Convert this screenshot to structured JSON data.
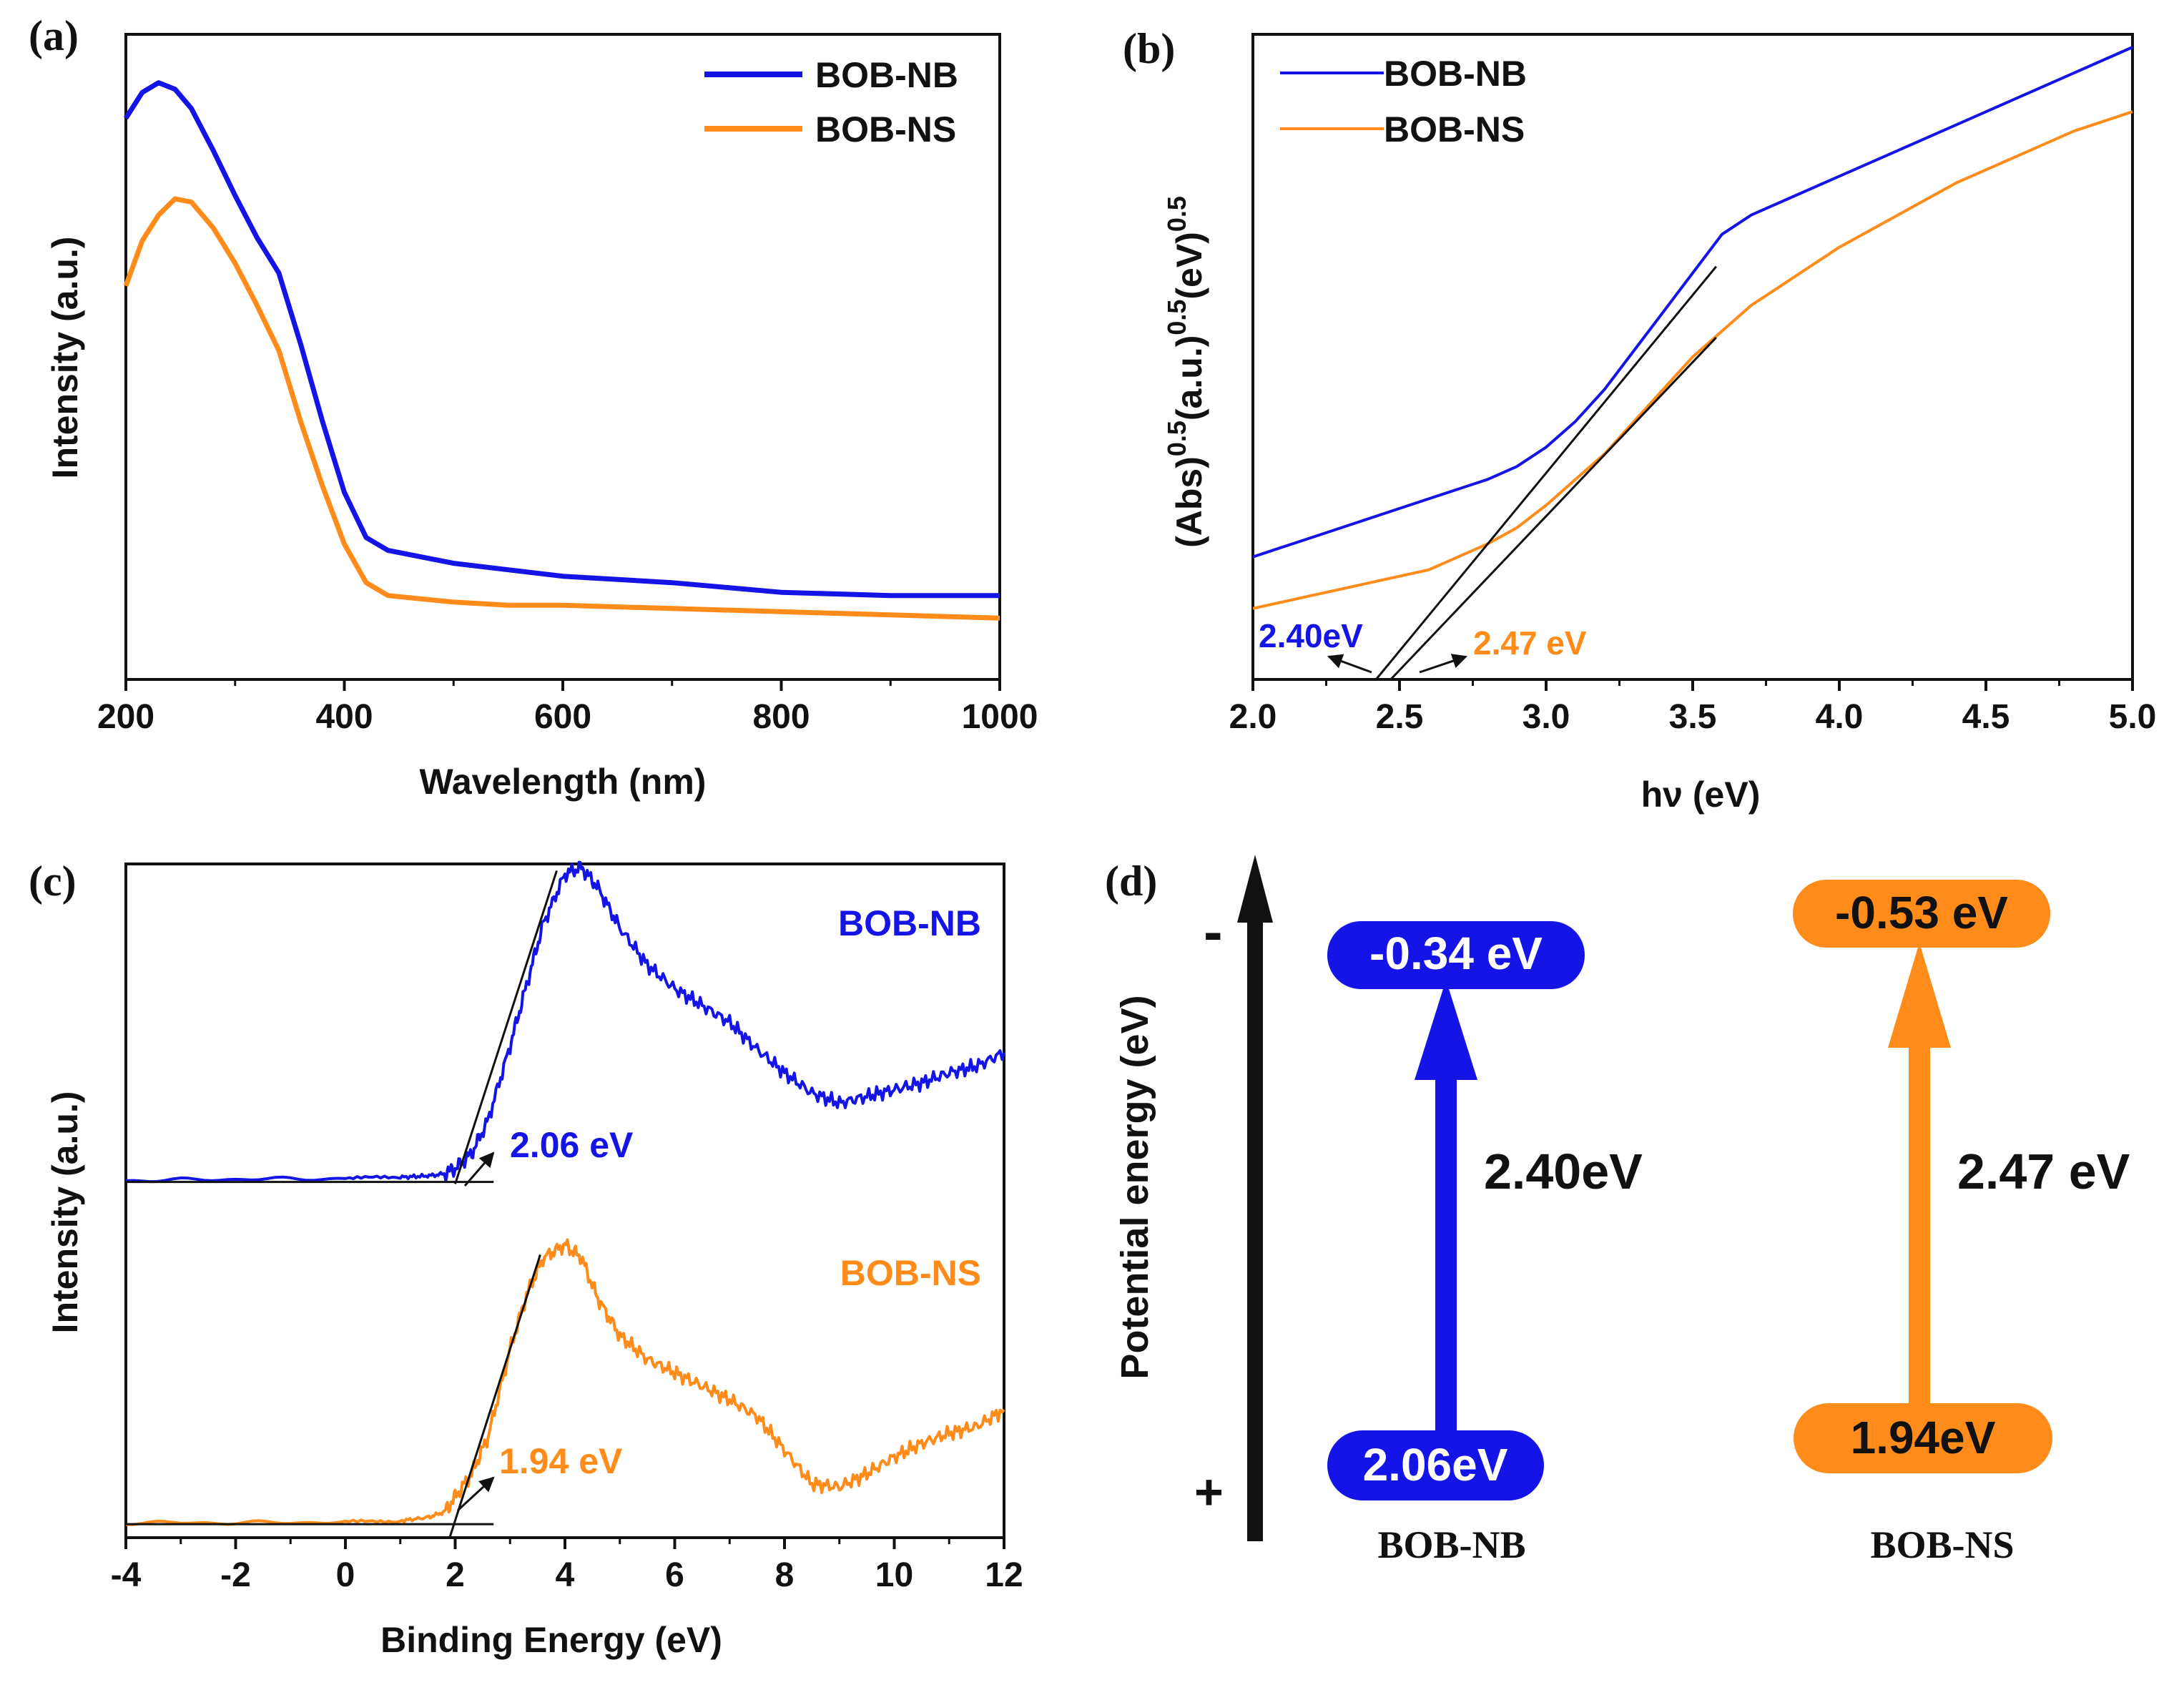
{
  "colors": {
    "nb": "#1414e6",
    "ns": "#ff8c1a",
    "axis": "#111111",
    "text": "#111111"
  },
  "chart_data": [
    {
      "panel": "(a)",
      "type": "line",
      "xlabel": "Wavelength (nm)",
      "ylabel": "Intensity (a.u.)",
      "xlim": [
        200,
        1000
      ],
      "ylim": [
        0,
        1
      ],
      "xticks": [
        200,
        400,
        600,
        800,
        1000
      ],
      "xtick_labels": [
        "200",
        "400",
        "600",
        "800",
        "1000"
      ],
      "legend_position": "top-right",
      "series": [
        {
          "name": "BOB-NB",
          "color": "#1414e6",
          "x": [
            200,
            215,
            230,
            245,
            260,
            280,
            300,
            320,
            340,
            360,
            380,
            400,
            420,
            440,
            470,
            500,
            550,
            600,
            700,
            800,
            900,
            1000
          ],
          "y": [
            0.87,
            0.91,
            0.925,
            0.915,
            0.885,
            0.82,
            0.75,
            0.685,
            0.63,
            0.52,
            0.4,
            0.29,
            0.22,
            0.2,
            0.19,
            0.18,
            0.17,
            0.16,
            0.15,
            0.135,
            0.13,
            0.13
          ]
        },
        {
          "name": "BOB-NS",
          "color": "#ff8c1a",
          "x": [
            200,
            215,
            230,
            245,
            260,
            280,
            300,
            320,
            340,
            360,
            380,
            400,
            420,
            440,
            470,
            500,
            550,
            600,
            700,
            800,
            900,
            1000
          ],
          "y": [
            0.61,
            0.68,
            0.72,
            0.745,
            0.74,
            0.7,
            0.645,
            0.58,
            0.51,
            0.4,
            0.3,
            0.21,
            0.15,
            0.13,
            0.125,
            0.12,
            0.115,
            0.115,
            0.11,
            0.105,
            0.1,
            0.095
          ]
        }
      ]
    },
    {
      "panel": "(b)",
      "type": "line",
      "xlabel": "hν (eV)",
      "ylabel_parts": {
        "base1": "(Abs)",
        "sup1": "0.5",
        "sub1": "(a.u.)",
        "sup2": "0.5",
        "sub2": "(eV)",
        "sup3": "0.5"
      },
      "xlim": [
        2.0,
        5.0
      ],
      "ylim": [
        0,
        1
      ],
      "xticks": [
        2.0,
        2.5,
        3.0,
        3.5,
        4.0,
        4.5,
        5.0
      ],
      "xtick_labels": [
        "2.0",
        "2.5",
        "3.0",
        "3.5",
        "4.0",
        "4.5",
        "5.0"
      ],
      "legend_position": "top-left",
      "series": [
        {
          "name": "BOB-NB",
          "color": "#1414e6",
          "x": [
            2.0,
            2.2,
            2.4,
            2.6,
            2.8,
            2.9,
            3.0,
            3.1,
            3.2,
            3.3,
            3.4,
            3.5,
            3.6,
            3.7,
            3.8,
            4.0,
            4.2,
            4.4,
            4.6,
            4.8,
            5.0
          ],
          "y": [
            0.19,
            0.22,
            0.25,
            0.28,
            0.31,
            0.33,
            0.36,
            0.4,
            0.45,
            0.51,
            0.57,
            0.63,
            0.69,
            0.72,
            0.74,
            0.78,
            0.82,
            0.86,
            0.9,
            0.94,
            0.98
          ]
        },
        {
          "name": "BOB-NS",
          "color": "#ff8c1a",
          "x": [
            2.0,
            2.2,
            2.4,
            2.6,
            2.7,
            2.8,
            2.9,
            3.0,
            3.1,
            3.2,
            3.3,
            3.4,
            3.5,
            3.6,
            3.7,
            3.8,
            4.0,
            4.2,
            4.4,
            4.6,
            4.8,
            5.0
          ],
          "y": [
            0.11,
            0.13,
            0.15,
            0.17,
            0.19,
            0.21,
            0.235,
            0.27,
            0.31,
            0.35,
            0.4,
            0.45,
            0.5,
            0.54,
            0.58,
            0.61,
            0.67,
            0.72,
            0.77,
            0.81,
            0.85,
            0.88
          ]
        }
      ],
      "tangents": [
        {
          "color": "#111111",
          "x": [
            2.42,
            3.58
          ],
          "y": [
            0.0,
            0.64
          ]
        },
        {
          "color": "#111111",
          "x": [
            2.47,
            3.58
          ],
          "y": [
            0.0,
            0.53
          ]
        }
      ],
      "annotations": [
        {
          "text": "2.40eV",
          "color": "#1414e6",
          "x": 2.4
        },
        {
          "text": "2.47 eV",
          "color": "#ff8c1a",
          "x": 2.47
        }
      ]
    },
    {
      "panel": "(c)",
      "type": "line",
      "xlabel": "Binding Energy (eV)",
      "ylabel": "Intensity (a.u.)",
      "xlim": [
        -4,
        12
      ],
      "ylim": [
        0,
        1
      ],
      "xticks": [
        -4,
        -2,
        0,
        2,
        4,
        6,
        8,
        10,
        12
      ],
      "xtick_labels": [
        "-4",
        "-2",
        "0",
        "2",
        "4",
        "6",
        "8",
        "10",
        "12"
      ],
      "series": [
        {
          "name": "BOB-NB",
          "color": "#1414e6",
          "x": [
            -4,
            -2,
            0,
            1.0,
            1.5,
            1.8,
            2.0,
            2.3,
            2.6,
            3.0,
            3.3,
            3.6,
            4.0,
            4.3,
            4.6,
            5.0,
            5.5,
            6.0,
            6.5,
            7.0,
            7.5,
            8.0,
            8.5,
            9.0,
            9.5,
            10.0,
            10.5,
            11.0,
            11.5,
            12.0
          ],
          "y": [
            0.53,
            0.532,
            0.533,
            0.535,
            0.537,
            0.54,
            0.548,
            0.57,
            0.62,
            0.73,
            0.82,
            0.91,
            0.985,
            0.995,
            0.965,
            0.905,
            0.85,
            0.815,
            0.79,
            0.765,
            0.725,
            0.69,
            0.66,
            0.645,
            0.655,
            0.665,
            0.675,
            0.69,
            0.7,
            0.72
          ]
        },
        {
          "name": "BOB-NS",
          "color": "#ff8c1a",
          "x": [
            -4,
            -2,
            0,
            1.0,
            1.5,
            1.8,
            2.0,
            2.3,
            2.6,
            3.0,
            3.3,
            3.6,
            4.0,
            4.3,
            4.6,
            5.0,
            5.5,
            6.0,
            6.5,
            7.0,
            7.5,
            8.0,
            8.5,
            9.0,
            9.5,
            10.0,
            10.5,
            11.0,
            11.5,
            12.0
          ],
          "y": [
            0.022,
            0.022,
            0.023,
            0.025,
            0.03,
            0.038,
            0.06,
            0.095,
            0.15,
            0.28,
            0.36,
            0.415,
            0.435,
            0.415,
            0.355,
            0.3,
            0.265,
            0.245,
            0.225,
            0.205,
            0.18,
            0.13,
            0.08,
            0.075,
            0.095,
            0.12,
            0.14,
            0.155,
            0.165,
            0.19
          ]
        }
      ],
      "tangents": [
        {
          "color": "#111111",
          "x": [
            2.0,
            3.85
          ],
          "y": [
            0.525,
            0.99
          ]
        },
        {
          "color": "#111111",
          "x": [
            1.9,
            3.55
          ],
          "y": [
            0.0,
            0.42
          ]
        }
      ],
      "baselines": [
        {
          "x": [
            -4,
            2.7
          ],
          "y": 0.528
        },
        {
          "x": [
            -4,
            2.7
          ],
          "y": 0.02
        }
      ],
      "labels": [
        {
          "text": "BOB-NB",
          "color": "#1414e6"
        },
        {
          "text": "BOB-NS",
          "color": "#ff8c1a"
        }
      ],
      "annotations": [
        {
          "text": "2.06 eV",
          "color": "#1414e6",
          "x": 2.06
        },
        {
          "text": "1.94 eV",
          "color": "#ff8c1a",
          "x": 1.94
        }
      ]
    },
    {
      "panel": "(d)",
      "type": "diagram",
      "ylabel": "Potential energy (eV)",
      "minus_sign": "-",
      "plus_sign": "+",
      "columns": [
        {
          "name": "BOB-NB",
          "color": "#1414e6",
          "cb": "-0.34 eV",
          "vb": "2.06eV",
          "gap": "2.40eV",
          "cb_value": -0.34,
          "vb_value": 2.06,
          "gap_value": 2.4
        },
        {
          "name": "BOB-NS",
          "color": "#ff8c1a",
          "cb": "-0.53 eV",
          "vb": "1.94eV",
          "gap": "2.47 eV",
          "cb_value": -0.53,
          "vb_value": 1.94,
          "gap_value": 2.47
        }
      ]
    }
  ]
}
